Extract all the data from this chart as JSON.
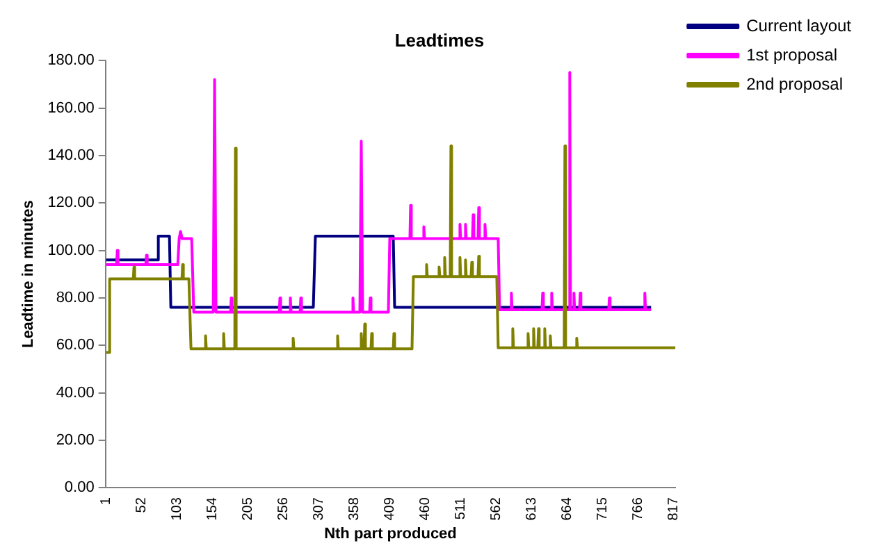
{
  "chart_data": {
    "type": "line",
    "title": "Leadtimes",
    "xlabel": "Nth part produced",
    "ylabel": "Leadtime in minutes",
    "xlim": [
      0,
      820
    ],
    "xticks": [
      1,
      52,
      103,
      154,
      205,
      256,
      307,
      358,
      409,
      460,
      511,
      562,
      613,
      664,
      715,
      766,
      817
    ],
    "ylim": [
      0,
      180
    ],
    "yticks": [
      {
        "value": 0,
        "label": "0.00"
      },
      {
        "value": 20,
        "label": "20.00"
      },
      {
        "value": 40,
        "label": "40.00"
      },
      {
        "value": 60,
        "label": "60.00"
      },
      {
        "value": 80,
        "label": "80.00"
      },
      {
        "value": 100,
        "label": "100.00"
      },
      {
        "value": 120,
        "label": "120.00"
      },
      {
        "value": 140,
        "label": "140.00"
      },
      {
        "value": 160,
        "label": "160.00"
      },
      {
        "value": 180,
        "label": "180.00"
      }
    ],
    "grid": false,
    "legend": "top right",
    "marker": "none",
    "line_style": "solid",
    "series": [
      {
        "name": "Current layout",
        "color": "#000080",
        "x": [
          1,
          75,
          76,
          92,
          94,
          299,
          302,
          414,
          416,
          785
        ],
        "values": [
          96,
          96,
          106,
          106,
          76,
          76,
          106,
          106,
          76,
          76
        ]
      },
      {
        "name": "1st proposal",
        "color": "#ff00ff",
        "x": [
          1,
          16,
          17,
          18,
          58,
          59,
          60,
          104,
          106,
          108,
          110,
          124,
          127,
          155,
          157,
          159,
          180,
          181,
          182,
          250,
          251,
          252,
          265,
          266,
          267,
          280,
          281,
          282,
          355,
          356,
          357,
          366,
          368,
          370,
          380,
          381,
          382,
          407,
          409,
          438,
          439,
          440,
          457,
          458,
          459,
          509,
          510,
          511,
          517,
          518,
          519,
          528,
          529,
          530,
          536,
          537,
          538,
          545,
          546,
          547,
          565,
          567,
          583,
          584,
          585,
          628,
          629,
          630,
          641,
          642,
          643,
          667,
          668,
          669,
          673,
          674,
          675,
          682,
          683,
          684,
          724,
          725,
          726,
          775,
          776,
          777,
          785
        ],
        "values": [
          94,
          94,
          100,
          94,
          94,
          98,
          94,
          94,
          105,
          108,
          105,
          105,
          74,
          74,
          172,
          74,
          74,
          80,
          74,
          74,
          80,
          74,
          74,
          80,
          74,
          74,
          80,
          74,
          74,
          80,
          74,
          74,
          146,
          74,
          74,
          80,
          74,
          74,
          105,
          105,
          119,
          105,
          105,
          110,
          105,
          105,
          111,
          105,
          105,
          111,
          105,
          105,
          115,
          105,
          105,
          118,
          105,
          105,
          111,
          105,
          105,
          75,
          75,
          82,
          75,
          75,
          82,
          75,
          75,
          82,
          75,
          75,
          175,
          75,
          75,
          82,
          75,
          75,
          82,
          75,
          75,
          80,
          75,
          75,
          82,
          75,
          75
        ]
      },
      {
        "name": "2nd proposal",
        "color": "#808000",
        "x": [
          1,
          5,
          6,
          40,
          41,
          42,
          110,
          111,
          112,
          120,
          123,
          143,
          144,
          145,
          169,
          170,
          171,
          186,
          187,
          188,
          269,
          270,
          271,
          333,
          334,
          335,
          367,
          368,
          369,
          372,
          373,
          374,
          382,
          383,
          384,
          414,
          415,
          416,
          441,
          443,
          461,
          462,
          463,
          479,
          480,
          481,
          487,
          488,
          489,
          496,
          497,
          498,
          509,
          510,
          511,
          517,
          518,
          519,
          526,
          527,
          528,
          536,
          537,
          538,
          563,
          565,
          585,
          586,
          587,
          607,
          608,
          609,
          615,
          616,
          617,
          622,
          623,
          624,
          631,
          632,
          633,
          639,
          640,
          641,
          660,
          661,
          662,
          677,
          678,
          679,
          820
        ],
        "values": [
          57,
          57,
          88,
          88,
          93,
          88,
          88,
          94,
          88,
          88,
          58.5,
          58.5,
          64,
          58.5,
          58.5,
          65,
          58.5,
          58.5,
          143,
          58.5,
          58.5,
          63,
          58.5,
          58.5,
          64,
          58.5,
          58.5,
          65,
          58.5,
          58.5,
          69,
          58.5,
          58.5,
          65,
          58.5,
          58.5,
          65,
          58.5,
          58.5,
          89,
          89,
          94,
          89,
          89,
          93,
          89,
          89,
          97,
          89,
          89,
          144,
          89,
          89,
          97,
          89,
          89,
          96,
          89,
          89,
          95,
          89,
          89,
          97.5,
          89,
          89,
          59,
          59,
          67,
          59,
          59,
          65,
          59,
          59,
          67,
          59,
          59,
          67,
          59,
          59,
          67,
          59,
          59,
          64,
          59,
          59,
          144,
          59,
          59,
          63,
          59,
          59
        ]
      }
    ]
  }
}
